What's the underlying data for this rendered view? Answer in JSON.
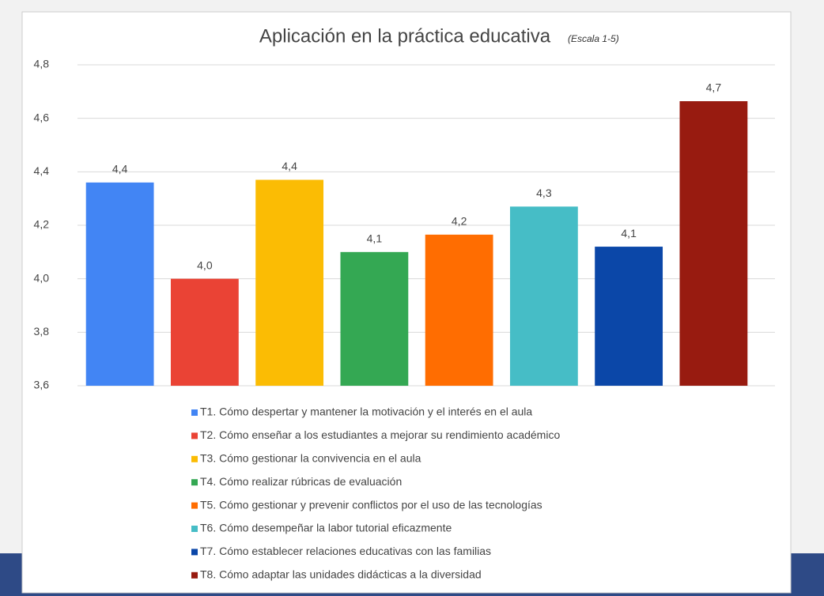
{
  "chart_data": {
    "type": "bar",
    "title": "Aplicación en la práctica educativa",
    "subtitle": "(Escala 1-5)",
    "categories": [
      "T1. Cómo despertar y mantener la motivación y el interés en el aula",
      "T2. Cómo enseñar a los estudiantes a mejorar su rendimiento académico",
      "T3. Cómo gestionar la convivencia en el aula",
      "T4. Cómo realizar rúbricas de evaluación",
      "T5. Cómo gestionar y prevenir conflictos por el uso de las tecnologías",
      "T6. Cómo desempeñar la labor tutorial eficazmente",
      "T7. Cómo establecer relaciones educativas con las familias",
      "T8. Cómo adaptar las unidades didácticas a la diversidad"
    ],
    "values": [
      4.36,
      4.0,
      4.37,
      4.1,
      4.165,
      4.27,
      4.12,
      4.664
    ],
    "value_labels": [
      "4,4",
      "4,0",
      "4,4",
      "4,1",
      "4,2",
      "4,3",
      "4,1",
      "4,7"
    ],
    "colors": [
      "#4285f4",
      "#ea4335",
      "#fbbc04",
      "#34a853",
      "#ff6d01",
      "#46bdc6",
      "#0b47a8",
      "#981b10"
    ],
    "ylim": [
      3.6,
      4.8
    ],
    "yticks": [
      {
        "value": 3.6,
        "label": "3,6"
      },
      {
        "value": 3.8,
        "label": "3,8"
      },
      {
        "value": 4.0,
        "label": "4,0"
      },
      {
        "value": 4.2,
        "label": "4,2"
      },
      {
        "value": 4.4,
        "label": "4,4"
      },
      {
        "value": 4.6,
        "label": "4,6"
      },
      {
        "value": 4.8,
        "label": "4,8"
      }
    ],
    "grid": true,
    "legend": "bottom"
  }
}
